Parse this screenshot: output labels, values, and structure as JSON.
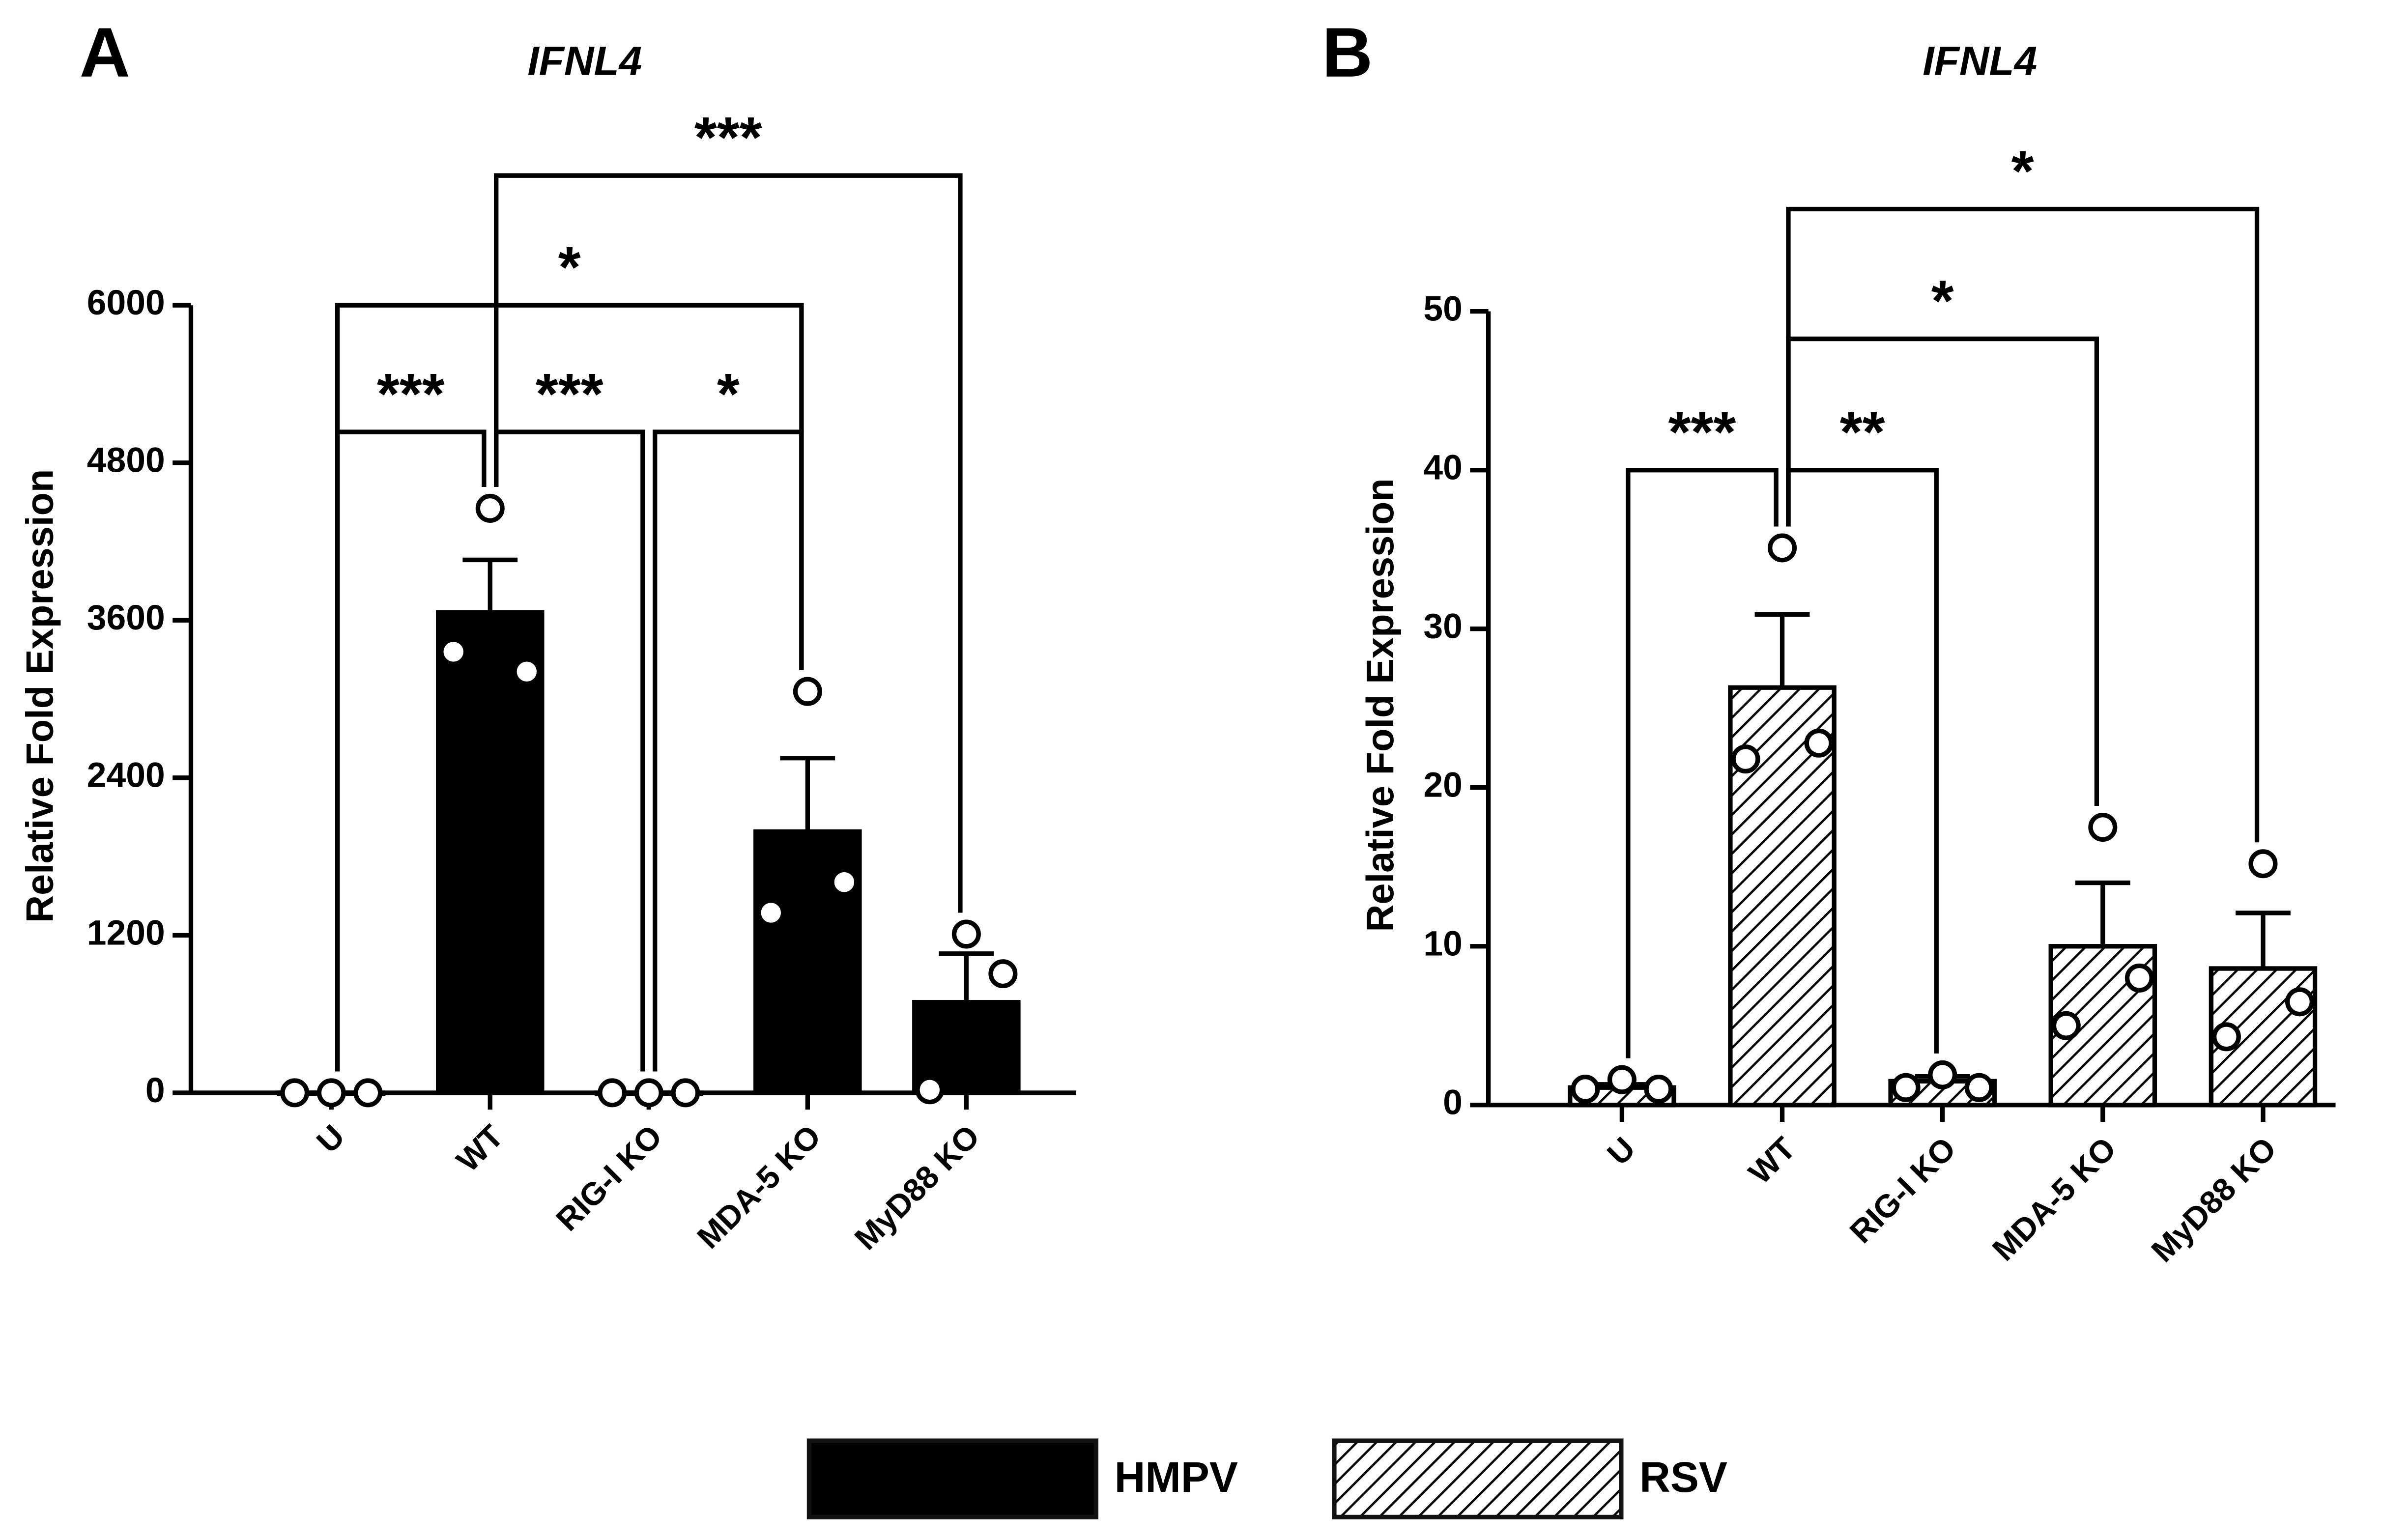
{
  "chart_data": [
    {
      "type": "bar",
      "panel": "A",
      "title": "IFNL4",
      "ylabel": "Relative Fold Expression",
      "categories": [
        "U",
        "WT",
        "RIG-I KO",
        "MDA-5 KO",
        "MyD88 KO"
      ],
      "series": [
        {
          "name": "HMPV",
          "color": "#000000",
          "values": [
            0,
            3660,
            0,
            1990,
            690
          ],
          "errors": [
            0,
            400,
            0,
            560,
            370
          ],
          "points": [
            [
              0,
              0,
              0
            ],
            [
              3360,
              4453,
              3209
            ],
            [
              0,
              0,
              0
            ],
            [
              1372,
              3058,
              1605
            ],
            [
              23,
              1209,
              907
            ]
          ]
        }
      ],
      "ylim": [
        0,
        6000
      ],
      "yticks": [
        0,
        1200,
        2400,
        3600,
        4800,
        6000
      ],
      "comparisons": [
        {
          "from": 0,
          "to": 1,
          "label": "***"
        },
        {
          "from": 1,
          "to": 2,
          "label": "***"
        },
        {
          "from": 2,
          "to": 3,
          "label": "*"
        },
        {
          "from": 0,
          "to": 3,
          "label": "*"
        },
        {
          "from": 1,
          "to": 4,
          "label": "***"
        }
      ]
    },
    {
      "type": "bar",
      "panel": "B",
      "title": "IFNL4",
      "ylabel": "Relative Fold Expression",
      "categories": [
        "U",
        "WT",
        "RIG-I KO",
        "MDA-5 KO",
        "MyD88 KO"
      ],
      "series": [
        {
          "name": "RSV",
          "color": "#000000",
          "hatch": true,
          "values": [
            1.1,
            26.3,
            1.5,
            10.0,
            8.6
          ],
          "errors": [
            0.2,
            4.6,
            0.3,
            4.0,
            3.5
          ],
          "points": [
            [
              1.0,
              1.6,
              1.0
            ],
            [
              21.8,
              35.1,
              22.8
            ],
            [
              1.1,
              1.9,
              1.1
            ],
            [
              5.0,
              17.5,
              8.0
            ],
            [
              4.3,
              15.2,
              6.5
            ]
          ]
        }
      ],
      "ylim": [
        0,
        50
      ],
      "yticks": [
        0,
        10,
        20,
        30,
        40,
        50
      ],
      "comparisons": [
        {
          "from": 0,
          "to": 1,
          "label": "***"
        },
        {
          "from": 1,
          "to": 2,
          "label": "**"
        },
        {
          "from": 1,
          "to": 3,
          "label": "*"
        },
        {
          "from": 1,
          "to": 4,
          "label": "*"
        }
      ]
    }
  ]
}
